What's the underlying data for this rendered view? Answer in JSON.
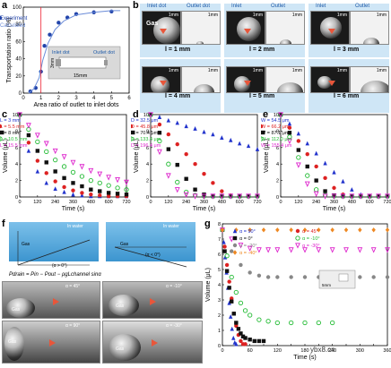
{
  "panel_labels": {
    "a": "a",
    "b": "b",
    "c": "c",
    "d": "d",
    "e": "e",
    "f": "f",
    "g": "g"
  },
  "panel_b": {
    "headers": [
      "Inlet dot",
      "Outlet dot",
      "Inlet",
      "Outlet",
      "Inlet",
      "Outlet"
    ],
    "scale": "1mm",
    "gas": "Gas",
    "lengths": [
      "l = 1 mm",
      "l = 2 mm",
      "l = 3 mm",
      "l = 4 mm",
      "l = 5 mm",
      "l = 6 mm"
    ]
  },
  "panel_f": {
    "in_water": "In water",
    "gas": "Gas",
    "angles": [
      "α = 45°",
      "α = -10°",
      "α = 90°",
      "α = -30°"
    ],
    "formula": "Pdrain = Pin − Pout − ρgLchannel sinα",
    "conditions": [
      "(α > 0°)",
      "(α < 0°)"
    ]
  },
  "watermark": "ybx8.cn",
  "chart_data": [
    {
      "id": "a",
      "type": "scatter",
      "xlabel": "Area ratio of outlet to inlet dots",
      "ylabel": "Transportation ratio (%)",
      "xlim": [
        0,
        6
      ],
      "ylim": [
        0,
        100
      ],
      "xticks": [
        0,
        1,
        2,
        3,
        4,
        5,
        6
      ],
      "yticks": [
        0,
        20,
        40,
        60,
        80,
        100
      ],
      "series": [
        {
          "name": "Experiment",
          "color": "#2244aa",
          "marker": "circle",
          "x": [
            0.4,
            0.7,
            1.0,
            1.2,
            1.5,
            2.0,
            2.5,
            3.0,
            4.0,
            5.0
          ],
          "y": [
            2,
            6,
            25,
            55,
            68,
            82,
            88,
            92,
            94,
            95
          ]
        },
        {
          "name": "Calculated",
          "color": "#6b8cd8",
          "marker": "line",
          "x": [
            0.3,
            0.6,
            0.9,
            1.1,
            1.4,
            1.8,
            2.3,
            3.0,
            4.0,
            5.0,
            5.5
          ],
          "y": [
            0,
            5,
            18,
            38,
            58,
            74,
            84,
            91,
            94,
            96,
            96
          ]
        }
      ],
      "annotations": {
        "inlet_dot": "Inlet dot",
        "outlet_dot": "Outlet dot",
        "width": "3mm",
        "length": "15mm",
        "vline_x": 1
      }
    },
    {
      "id": "c",
      "type": "scatter",
      "xlabel": "Time (s)",
      "ylabel": "Volume (μL)",
      "xlim": [
        0,
        720
      ],
      "ylim": [
        0,
        10
      ],
      "xticks": [
        0,
        120,
        240,
        360,
        480,
        600,
        720
      ],
      "yticks": [
        0,
        2,
        4,
        6,
        8,
        10
      ],
      "series": [
        {
          "name": "L = 3 mm",
          "color": "#2233cc",
          "marker": "triangle",
          "x": [
            0,
            60,
            120,
            180,
            240,
            300,
            360,
            420,
            480,
            540,
            600,
            660,
            720
          ],
          "y": [
            10,
            5.6,
            3.1,
            1.7,
            1.0,
            0.6,
            0.3,
            0.2,
            0.1,
            0.1,
            0.1,
            0.1,
            0.1
          ]
        },
        {
          "name": "L = 5.5 mm",
          "color": "#dd2222",
          "marker": "circle",
          "x": [
            0,
            60,
            120,
            180,
            240,
            300,
            360,
            420,
            480,
            540,
            600,
            660,
            720
          ],
          "y": [
            10,
            6.6,
            4.4,
            2.9,
            1.9,
            1.2,
            0.8,
            0.5,
            0.3,
            0.2,
            0.1,
            0.1,
            0.1
          ]
        },
        {
          "name": "L = 8 mm",
          "color": "#111111",
          "marker": "square",
          "x": [
            0,
            60,
            120,
            180,
            240,
            300,
            360,
            420,
            480,
            540,
            600,
            660,
            720
          ],
          "y": [
            10,
            7.5,
            5.6,
            4.2,
            3.1,
            2.3,
            1.7,
            1.3,
            0.9,
            0.7,
            0.5,
            0.4,
            0.3
          ]
        },
        {
          "name": "L = 10.5 mm",
          "color": "#22bb33",
          "marker": "circle-o",
          "x": [
            0,
            60,
            120,
            180,
            240,
            300,
            360,
            420,
            480,
            540,
            600,
            660,
            720
          ],
          "y": [
            10,
            8.2,
            6.7,
            5.5,
            4.5,
            3.7,
            3.0,
            2.5,
            2.0,
            1.7,
            1.4,
            1.1,
            0.9
          ]
        },
        {
          "name": "L = 15.5 mm",
          "color": "#dd22cc",
          "marker": "triangle-down",
          "x": [
            0,
            60,
            120,
            180,
            240,
            300,
            360,
            420,
            480,
            540,
            600,
            660,
            720
          ],
          "y": [
            10,
            8.7,
            7.5,
            6.5,
            5.6,
            4.9,
            4.2,
            3.7,
            3.2,
            2.8,
            2.4,
            2.1,
            1.8
          ]
        }
      ]
    },
    {
      "id": "d",
      "type": "scatter",
      "xlabel": "Time (s)",
      "ylabel": "Volume (μL)",
      "xlim": [
        0,
        720
      ],
      "ylim": [
        0,
        10
      ],
      "xticks": [
        0,
        120,
        240,
        360,
        480,
        600,
        720
      ],
      "yticks": [
        0,
        2,
        4,
        6,
        8,
        10
      ],
      "series": [
        {
          "name": "D = 32.5 μm",
          "color": "#2233cc",
          "marker": "triangle",
          "x": [
            0,
            60,
            120,
            180,
            240,
            300,
            360,
            420,
            480,
            540,
            600,
            660,
            720
          ],
          "y": [
            10,
            9.7,
            9.3,
            9.0,
            8.6,
            8.3,
            7.9,
            7.6,
            7.2,
            6.9,
            6.5,
            6.2,
            5.8
          ]
        },
        {
          "name": "D = 45.8 μm",
          "color": "#dd2222",
          "marker": "circle",
          "x": [
            0,
            60,
            120,
            180,
            240,
            300,
            360,
            420,
            480,
            540,
            600,
            660,
            720
          ],
          "y": [
            10,
            8.8,
            7.6,
            6.4,
            5.2,
            4.0,
            2.8,
            1.7,
            0.7,
            0.2,
            0.1,
            0.1,
            0.1
          ]
        },
        {
          "name": "D = 70.4 μm",
          "color": "#111111",
          "marker": "square",
          "x": [
            0,
            60,
            120,
            180,
            240,
            300,
            360,
            420,
            480,
            540,
            600,
            660,
            720
          ],
          "y": [
            10,
            7.8,
            5.8,
            3.9,
            2.2,
            0.9,
            0.3,
            0.1,
            0.1,
            0.1,
            0.1,
            0.1,
            0.1
          ]
        },
        {
          "name": "D = 133.4 μm",
          "color": "#22bb33",
          "marker": "circle-o",
          "x": [
            0,
            60,
            120,
            180,
            240,
            300,
            360,
            420,
            480,
            540,
            600,
            660,
            720
          ],
          "y": [
            10,
            6.8,
            4.0,
            1.8,
            0.6,
            0.2,
            0.1,
            0.1,
            0.1,
            0.1,
            0.1,
            0.1,
            0.1
          ]
        },
        {
          "name": "D = 196.4 μm",
          "color": "#dd22cc",
          "marker": "triangle-down",
          "x": [
            0,
            60,
            120,
            180,
            240,
            300,
            360,
            420,
            480,
            540,
            600,
            660,
            720
          ],
          "y": [
            10,
            5.5,
            2.6,
            0.9,
            0.3,
            0.1,
            0.1,
            0.1,
            0.1,
            0.1,
            0.1,
            0.1,
            0.1
          ]
        }
      ]
    },
    {
      "id": "e",
      "type": "scatter",
      "xlabel": "Time (s)",
      "ylabel": "Volume (μL)",
      "xlim": [
        0,
        720
      ],
      "ylim": [
        0,
        10
      ],
      "xticks": [
        0,
        120,
        240,
        360,
        480,
        600,
        720
      ],
      "yticks": [
        0,
        2,
        4,
        6,
        8,
        10
      ],
      "series": [
        {
          "name": "W = 54.5 μm",
          "color": "#2233cc",
          "marker": "triangle",
          "x": [
            0,
            60,
            120,
            180,
            240,
            300,
            360,
            420,
            480,
            540,
            600,
            660,
            720
          ],
          "y": [
            10,
            8.9,
            7.7,
            6.5,
            5.3,
            4.1,
            3.0,
            1.9,
            0.9,
            0.3,
            0.1,
            0.1,
            0.1
          ]
        },
        {
          "name": "W = 66.2 μm",
          "color": "#dd2222",
          "marker": "circle",
          "x": [
            0,
            60,
            120,
            180,
            240,
            300,
            360,
            420,
            480,
            540,
            600,
            660,
            720
          ],
          "y": [
            10,
            8.4,
            6.8,
            5.2,
            3.7,
            2.3,
            1.1,
            0.3,
            0.1,
            0.1,
            0.1,
            0.1,
            0.1
          ]
        },
        {
          "name": "W = 87.1 μm",
          "color": "#111111",
          "marker": "square",
          "x": [
            0,
            60,
            120,
            180,
            240,
            300,
            360,
            420,
            480,
            540,
            600,
            660,
            720
          ],
          "y": [
            10,
            7.8,
            5.7,
            3.7,
            2.0,
            0.7,
            0.2,
            0.1,
            0.1,
            0.1,
            0.1,
            0.1,
            0.1
          ]
        },
        {
          "name": "W = 112.0 μm",
          "color": "#22bb33",
          "marker": "circle-o",
          "x": [
            0,
            60,
            120,
            180,
            240,
            300,
            360,
            420,
            480,
            540,
            600,
            660,
            720
          ],
          "y": [
            10,
            7.3,
            4.8,
            2.6,
            0.9,
            0.2,
            0.1,
            0.1,
            0.1,
            0.1,
            0.1,
            0.1,
            0.1
          ]
        },
        {
          "name": "W = 155.4 μm",
          "color": "#dd22cc",
          "marker": "triangle-down",
          "x": [
            0,
            60,
            120,
            180,
            240,
            300,
            360,
            420,
            480,
            540,
            600,
            660,
            720
          ],
          "y": [
            10,
            6.8,
            3.9,
            1.6,
            0.4,
            0.1,
            0.1,
            0.1,
            0.1,
            0.1,
            0.1,
            0.1,
            0.1
          ]
        }
      ]
    },
    {
      "id": "g",
      "type": "scatter",
      "xlabel": "Time (s)",
      "ylabel": "Volume (μL)",
      "xlim": [
        0,
        360
      ],
      "ylim": [
        0,
        8
      ],
      "xticks": [
        0,
        30,
        60,
        90,
        120,
        150,
        180,
        210,
        240,
        270,
        300,
        330,
        360
      ],
      "yticks": [
        0,
        1,
        2,
        3,
        4,
        5,
        6,
        7,
        8
      ],
      "series": [
        {
          "name": "α = 90°",
          "color": "#2233cc",
          "marker": "triangle",
          "x": [
            0,
            3,
            6,
            9,
            12,
            15,
            18,
            21,
            24,
            27,
            30
          ],
          "y": [
            7.6,
            6.8,
            5.8,
            4.8,
            3.8,
            2.8,
            1.9,
            1.1,
            0.5,
            0.2,
            0.1
          ]
        },
        {
          "name": "α = 45°",
          "color": "#dd2222",
          "marker": "circle",
          "x": [
            0,
            5,
            10,
            15,
            20,
            25,
            30,
            35,
            40,
            45,
            50
          ],
          "y": [
            7.6,
            6.5,
            5.3,
            4.2,
            3.1,
            2.1,
            1.3,
            0.7,
            0.3,
            0.1,
            0.1
          ]
        },
        {
          "name": "α = 0°",
          "color": "#111111",
          "marker": "square",
          "x": [
            0,
            5,
            10,
            15,
            20,
            25,
            30,
            35,
            40,
            45,
            50,
            60,
            70,
            80,
            90
          ],
          "y": [
            7.6,
            6.2,
            4.9,
            3.8,
            2.9,
            2.1,
            1.5,
            1.1,
            0.8,
            0.6,
            0.5,
            0.4,
            0.3,
            0.3,
            0.3
          ]
        },
        {
          "name": "α = -10°",
          "color": "#22bb33",
          "marker": "circle-o",
          "x": [
            0,
            10,
            20,
            30,
            40,
            50,
            60,
            80,
            100,
            120,
            150,
            180,
            210,
            240
          ],
          "y": [
            7.6,
            5.9,
            4.5,
            3.5,
            2.8,
            2.3,
            2.0,
            1.7,
            1.6,
            1.5,
            1.5,
            1.5,
            1.5,
            1.5
          ]
        },
        {
          "name": "α = -20°",
          "color": "#888888",
          "marker": "circle",
          "x": [
            0,
            20,
            40,
            60,
            80,
            100,
            120,
            150,
            180,
            210,
            240,
            270,
            300,
            330,
            360
          ],
          "y": [
            7.6,
            6.2,
            5.3,
            4.8,
            4.6,
            4.5,
            4.5,
            4.5,
            4.5,
            4.5,
            4.5,
            4.5,
            4.5,
            4.5,
            4.5
          ]
        },
        {
          "name": "α = -30°",
          "color": "#dd22cc",
          "marker": "triangle-down",
          "x": [
            0,
            20,
            40,
            60,
            80,
            100,
            120,
            150,
            180,
            210,
            240,
            270,
            300,
            330,
            360
          ],
          "y": [
            7.6,
            7.0,
            6.6,
            6.4,
            6.3,
            6.3,
            6.3,
            6.3,
            6.3,
            6.3,
            6.3,
            6.3,
            6.3,
            6.3,
            6.3
          ]
        },
        {
          "name": "α = -40°",
          "color": "#ee8822",
          "marker": "diamond",
          "x": [
            0,
            30,
            60,
            90,
            120,
            150,
            180,
            210,
            240,
            270,
            300,
            330,
            360
          ],
          "y": [
            7.6,
            7.6,
            7.6,
            7.6,
            7.6,
            7.6,
            7.6,
            7.6,
            7.6,
            7.6,
            7.6,
            7.6,
            7.6
          ]
        }
      ],
      "inset_scale": "5mm"
    }
  ]
}
